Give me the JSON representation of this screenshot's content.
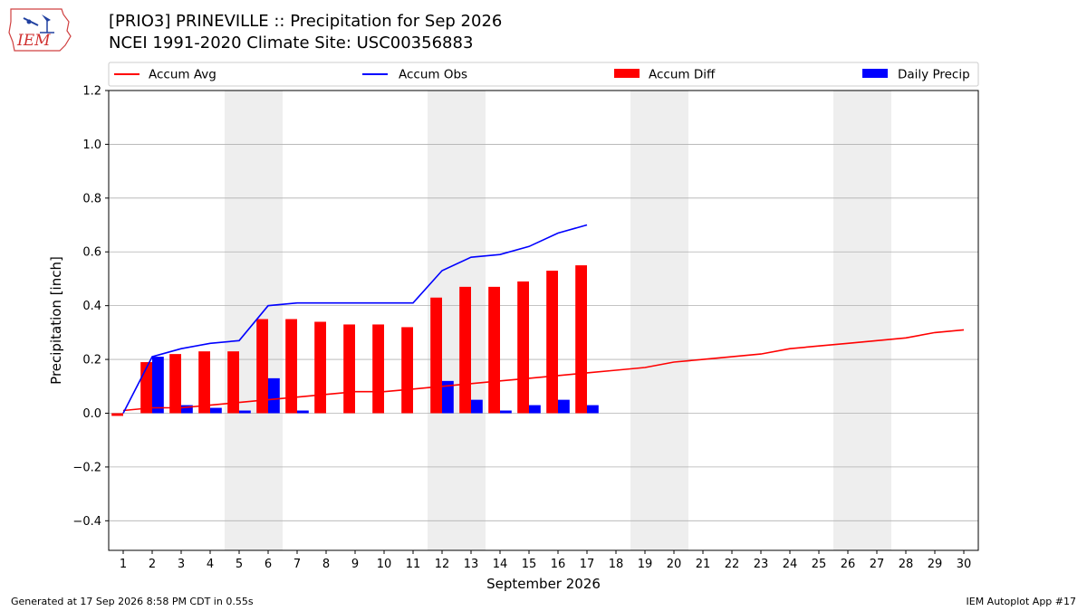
{
  "header": {
    "title_line1": "[PRIO3] PRINEVILLE :: Precipitation for Sep 2026",
    "title_line2": "NCEI 1991-2020 Climate Site: USC00356883",
    "logo_text": "IEM"
  },
  "footer": {
    "generated": "Generated at 17 Sep 2026 8:58 PM CDT in 0.55s",
    "app": "IEM Autoplot App #17"
  },
  "colors": {
    "accum_avg": "#ff0000",
    "accum_obs": "#0000ff",
    "accum_diff": "#ff0000",
    "daily_precip": "#0000ff",
    "weekend_band": "#eeeeee",
    "grid": "#b0b0b0"
  },
  "chart_data": {
    "type": "bar",
    "xlabel": "September 2026",
    "ylabel": "Precipitation [inch]",
    "ylim": [
      -0.51,
      1.2
    ],
    "yticks": [
      -0.4,
      -0.2,
      0.0,
      0.2,
      0.4,
      0.6,
      0.8,
      1.0,
      1.2
    ],
    "ytick_labels": [
      "−0.4",
      "−0.2",
      "0.0",
      "0.2",
      "0.4",
      "0.6",
      "0.8",
      "1.0",
      "1.2"
    ],
    "xlim": [
      0.5,
      30.5
    ],
    "days": [
      1,
      2,
      3,
      4,
      5,
      6,
      7,
      8,
      9,
      10,
      11,
      12,
      13,
      14,
      15,
      16,
      17,
      18,
      19,
      20,
      21,
      22,
      23,
      24,
      25,
      26,
      27,
      28,
      29,
      30
    ],
    "weekend_bands": [
      [
        4.5,
        6.5
      ],
      [
        11.5,
        13.5
      ],
      [
        18.5,
        20.5
      ],
      [
        25.5,
        27.5
      ]
    ],
    "grid": "y",
    "legend": {
      "placement": "top",
      "entries": [
        {
          "label": "Accum Avg",
          "kind": "line",
          "color": "#ff0000"
        },
        {
          "label": "Accum Obs",
          "kind": "line",
          "color": "#0000ff"
        },
        {
          "label": "Accum Diff",
          "kind": "bar",
          "color": "#ff0000"
        },
        {
          "label": "Daily Precip",
          "kind": "bar",
          "color": "#0000ff"
        }
      ]
    },
    "series": [
      {
        "name": "Accum Avg",
        "kind": "line",
        "color": "#ff0000",
        "x": [
          1,
          2,
          3,
          4,
          5,
          6,
          7,
          8,
          9,
          10,
          11,
          12,
          13,
          14,
          15,
          16,
          17,
          18,
          19,
          20,
          21,
          22,
          23,
          24,
          25,
          26,
          27,
          28,
          29,
          30
        ],
        "values": [
          0.01,
          0.02,
          0.02,
          0.03,
          0.04,
          0.05,
          0.06,
          0.07,
          0.08,
          0.08,
          0.09,
          0.1,
          0.11,
          0.12,
          0.13,
          0.14,
          0.15,
          0.16,
          0.17,
          0.19,
          0.2,
          0.21,
          0.22,
          0.24,
          0.25,
          0.26,
          0.27,
          0.28,
          0.3,
          0.31
        ]
      },
      {
        "name": "Accum Obs",
        "kind": "line",
        "color": "#0000ff",
        "x": [
          1,
          2,
          3,
          4,
          5,
          6,
          7,
          8,
          9,
          10,
          11,
          12,
          13,
          14,
          15,
          16,
          17
        ],
        "values": [
          0.0,
          0.21,
          0.24,
          0.26,
          0.27,
          0.4,
          0.41,
          0.41,
          0.41,
          0.41,
          0.41,
          0.53,
          0.58,
          0.59,
          0.62,
          0.67,
          0.7
        ]
      },
      {
        "name": "Accum Diff",
        "kind": "bar",
        "color": "#ff0000",
        "x": [
          1,
          2,
          3,
          4,
          5,
          6,
          7,
          8,
          9,
          10,
          11,
          12,
          13,
          14,
          15,
          16,
          17
        ],
        "values": [
          -0.01,
          0.19,
          0.22,
          0.23,
          0.23,
          0.35,
          0.35,
          0.34,
          0.33,
          0.33,
          0.32,
          0.43,
          0.47,
          0.47,
          0.49,
          0.53,
          0.55
        ]
      },
      {
        "name": "Daily Precip",
        "kind": "bar",
        "color": "#0000ff",
        "x": [
          1,
          2,
          3,
          4,
          5,
          6,
          7,
          8,
          9,
          10,
          11,
          12,
          13,
          14,
          15,
          16,
          17
        ],
        "values": [
          0.0,
          0.21,
          0.03,
          0.02,
          0.01,
          0.13,
          0.01,
          0.0,
          0.0,
          0.0,
          0.0,
          0.12,
          0.05,
          0.01,
          0.03,
          0.05,
          0.03
        ]
      }
    ]
  }
}
